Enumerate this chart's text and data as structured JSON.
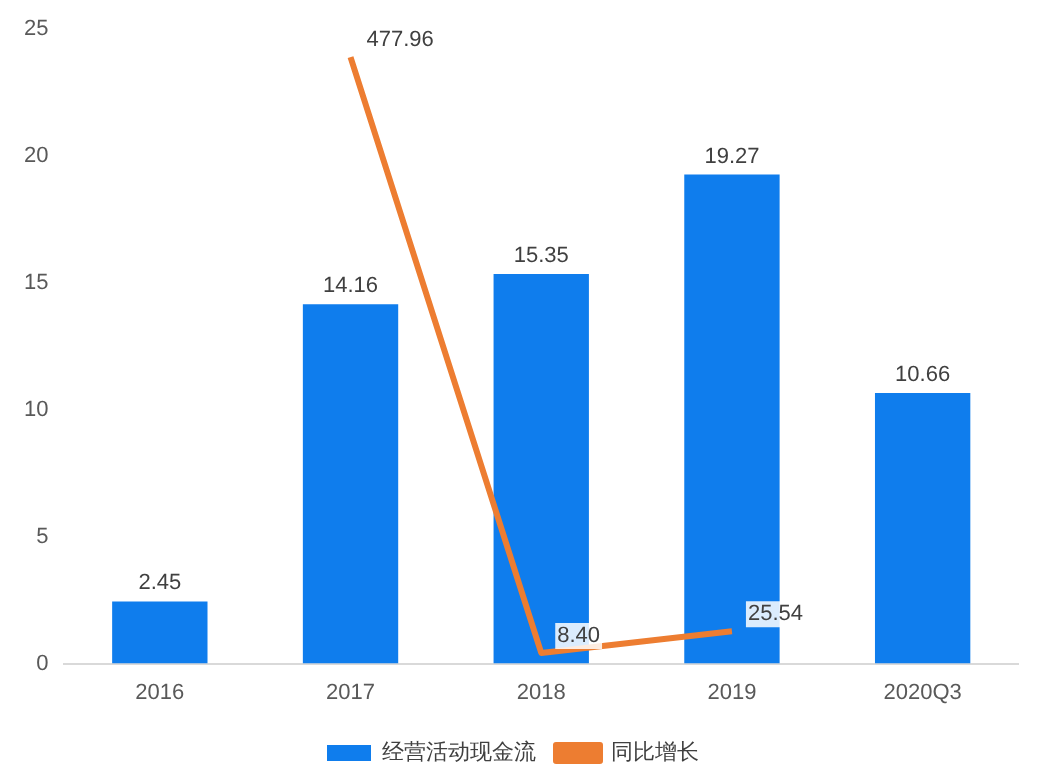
{
  "chart_data": {
    "type": "bar",
    "categories": [
      "2016",
      "2017",
      "2018",
      "2019",
      "2020Q3"
    ],
    "series": [
      {
        "name": "经营活动现金流",
        "color": "#0f7ded",
        "values": [
          2.45,
          14.16,
          15.35,
          19.27,
          10.66
        ],
        "value_labels": [
          "2.45",
          "14.16",
          "15.35",
          "19.27",
          "10.66"
        ]
      },
      {
        "name": "同比增长",
        "type": "line",
        "axis": "y2",
        "color": "#ed7d31",
        "values": [
          null,
          477.96,
          8.4,
          25.54,
          null
        ],
        "value_labels": [
          null,
          "477.96",
          "8.40",
          "25.54",
          null
        ]
      }
    ],
    "ylim": [
      0,
      25
    ],
    "yticks": [
      0,
      5,
      10,
      15,
      20,
      25
    ],
    "grid": false,
    "legend": "bottom",
    "marker": "none"
  }
}
